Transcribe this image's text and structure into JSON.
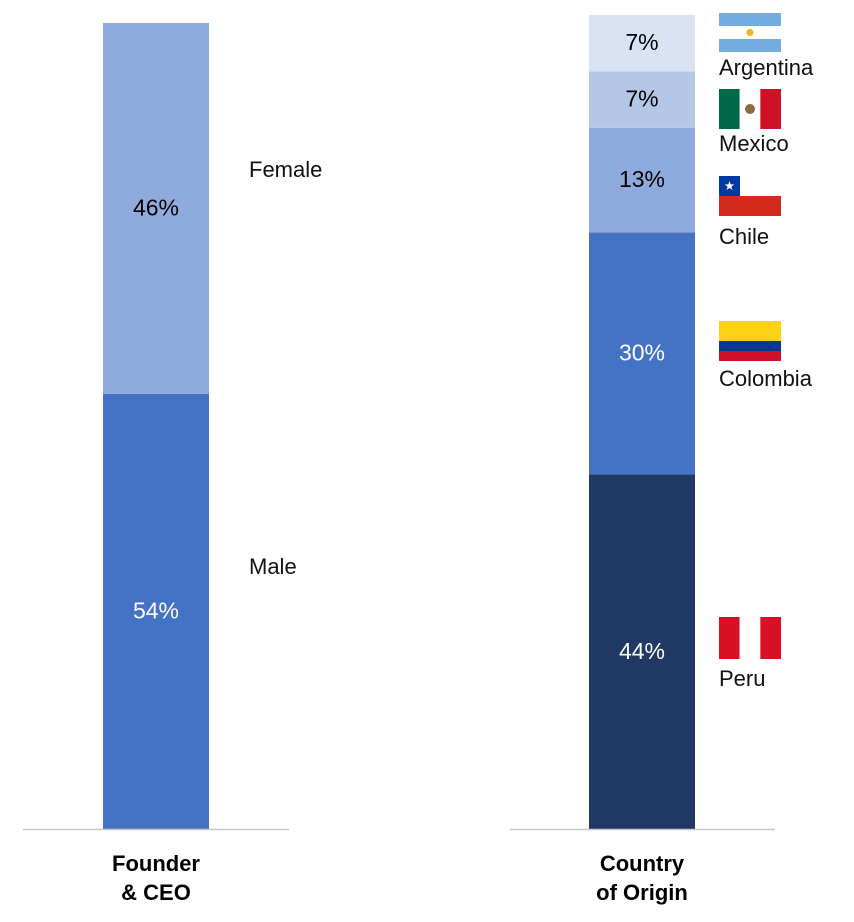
{
  "chart_data": [
    {
      "type": "stacked-bar",
      "category": [
        "Founder",
        "& CEO"
      ],
      "unit": "%",
      "ylim": [
        0,
        100
      ],
      "grid": false,
      "legend": "labels to the right of bar",
      "segments": [
        {
          "name": "Male",
          "value": 54,
          "color": "#4472c4",
          "text_color": "#ffffff"
        },
        {
          "name": "Female",
          "value": 46,
          "color": "#8faadc",
          "text_color": "#000000"
        }
      ]
    },
    {
      "type": "stacked-bar",
      "category": [
        "Country",
        "of Origin"
      ],
      "unit": "%",
      "ylim": [
        0,
        100
      ],
      "grid": false,
      "legend": "labels with flag icons to the right of bar",
      "segments": [
        {
          "name": "Peru",
          "value": 44,
          "color": "#203864",
          "text_color": "#ffffff",
          "icon": "peru-flag-icon"
        },
        {
          "name": "Colombia",
          "value": 30,
          "color": "#4472c4",
          "text_color": "#ffffff",
          "icon": "colombia-flag-icon"
        },
        {
          "name": "Chile",
          "value": 13,
          "color": "#8faadc",
          "text_color": "#000000",
          "icon": "chile-flag-icon"
        },
        {
          "name": "Mexico",
          "value": 7,
          "color": "#b4c7e7",
          "text_color": "#000000",
          "icon": "mexico-flag-icon"
        },
        {
          "name": "Argentina",
          "value": 7,
          "color": "#dae3f3",
          "text_color": "#000000",
          "icon": "argentina-flag-icon"
        }
      ]
    }
  ]
}
